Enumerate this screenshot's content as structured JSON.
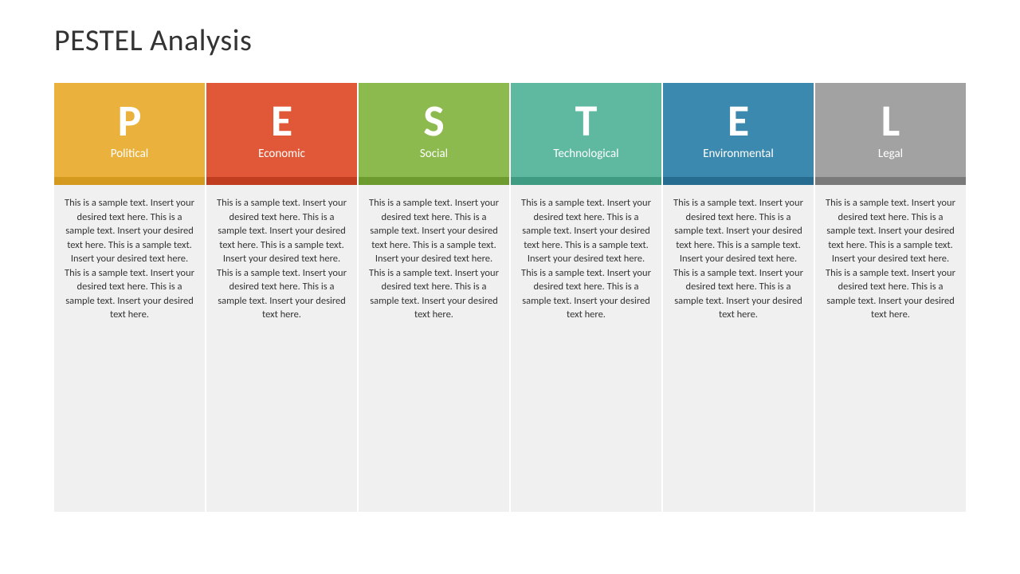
{
  "title": "PESTEL Analysis",
  "body_background": "#f0f0f0",
  "body_text_color": "#333333",
  "columns": [
    {
      "letter": "P",
      "label": "Political",
      "header_color": "#eab23d",
      "accent_color": "#d49a20",
      "body": "This is a sample text. Insert your desired text here. This is a sample text. Insert your desired text here. This is a sample text. Insert your desired text here. This is a sample text. Insert your desired text here. This is a sample text. Insert your desired text here."
    },
    {
      "letter": "E",
      "label": "Economic",
      "header_color": "#e15838",
      "accent_color": "#c13d1f",
      "body": "This is a sample text. Insert your desired text here. This is a sample text. Insert your desired text here. This is a sample text. Insert your desired text here. This is a sample text. Insert your desired text here. This is a sample text. Insert your desired text here."
    },
    {
      "letter": "S",
      "label": "Social",
      "header_color": "#8cba4e",
      "accent_color": "#6d9b2f",
      "body": "This is a sample text. Insert your desired text here. This is a sample text. Insert your desired text here. This is a sample text. Insert your desired text here. This is a sample text. Insert your desired text here. This is a sample text. Insert your desired text here."
    },
    {
      "letter": "T",
      "label": "Technological",
      "header_color": "#5eb9a0",
      "accent_color": "#3f9c82",
      "body": "This is a sample text. Insert your desired text here. This is a sample text. Insert your desired text here. This is a sample text. Insert your desired text here. This is a sample text. Insert your desired text here. This is a sample text. Insert your desired text here."
    },
    {
      "letter": "E",
      "label": "Environmental",
      "header_color": "#3b89ae",
      "accent_color": "#256c90",
      "body": "This is a sample text. Insert your desired text here. This is a sample text. Insert your desired text here. This is a sample text. Insert your desired text here. This is a sample text. Insert your desired text here. This is a sample text. Insert your desired text here."
    },
    {
      "letter": "L",
      "label": "Legal",
      "header_color": "#a2a2a2",
      "accent_color": "#7a7a7a",
      "body": "This is a sample text. Insert your desired text here. This is a sample text. Insert your desired text here. This is a sample text. Insert your desired text here. This is a sample text. Insert your desired text here. This is a sample text. Insert your desired text here."
    }
  ]
}
